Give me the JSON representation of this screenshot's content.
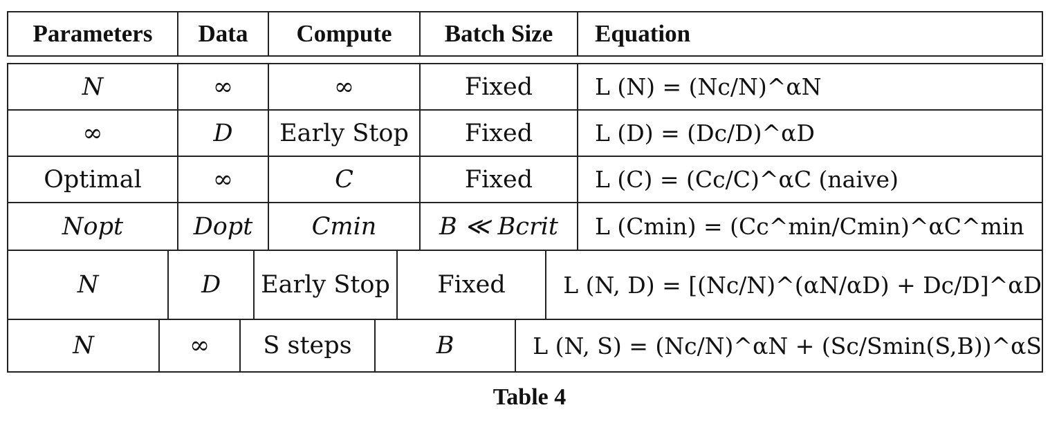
{
  "table": {
    "headers": [
      "Parameters",
      "Data",
      "Compute",
      "Batch Size",
      "Equation"
    ],
    "rows": [
      {
        "parameters": "N",
        "data": "∞",
        "compute": "∞",
        "batch": "Fixed",
        "equation": "L (N) = (Nc/N)^αN"
      },
      {
        "parameters": "∞",
        "data": "D",
        "compute": "Early Stop",
        "batch": "Fixed",
        "equation": "L (D) = (Dc/D)^αD"
      },
      {
        "parameters": "Optimal",
        "data": "∞",
        "compute": "C",
        "batch": "Fixed",
        "equation": "L (C) = (Cc/C)^αC (naive)"
      },
      {
        "parameters": "Nopt",
        "data": "Dopt",
        "compute": "Cmin",
        "batch": "B ≪ Bcrit",
        "equation": "L (Cmin) = (Cc^min/Cmin)^αC^min"
      },
      {
        "parameters": "N",
        "data": "D",
        "compute": "Early Stop",
        "batch": "Fixed",
        "equation": "L (N, D) = [(Nc/N)^(αN/αD) + Dc/D]^αD"
      },
      {
        "parameters": "N",
        "data": "∞",
        "compute": "S steps",
        "batch": "B",
        "equation": "L (N, S) = (Nc/N)^αN + (Sc/Smin(S,B))^αS"
      }
    ]
  },
  "caption": "Table 4"
}
